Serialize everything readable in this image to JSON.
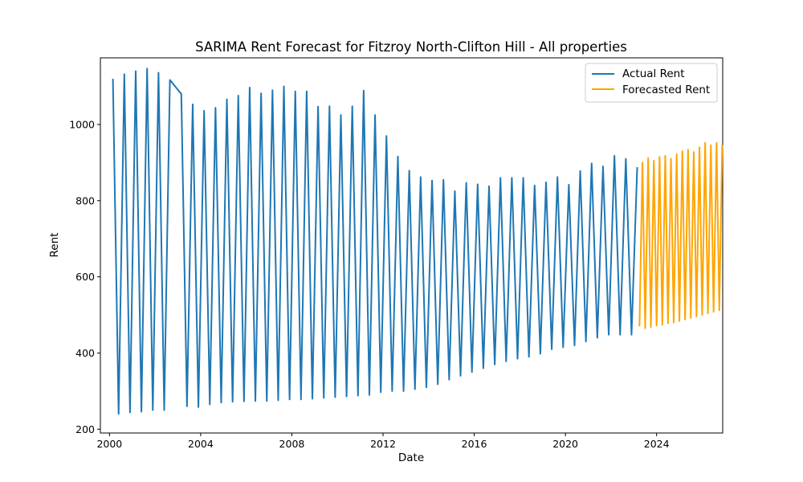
{
  "chart_data": {
    "type": "line",
    "title": "SARIMA Rent Forecast for Fitzroy North-Clifton Hill - All properties",
    "xlabel": "Date",
    "ylabel": "Rent",
    "xlim": [
      1999.6,
      2026.9
    ],
    "ylim": [
      190,
      1175
    ],
    "x_ticks": [
      2000,
      2004,
      2008,
      2012,
      2016,
      2020,
      2024
    ],
    "y_ticks": [
      200,
      400,
      600,
      800,
      1000
    ],
    "grid": false,
    "legend_position": "top-right",
    "series": [
      {
        "name": "Actual Rent",
        "color": "#1f77b4",
        "points": [
          [
            2000.15,
            1120
          ],
          [
            2000.4,
            240
          ],
          [
            2000.65,
            1132
          ],
          [
            2000.9,
            244
          ],
          [
            2001.15,
            1140
          ],
          [
            2001.4,
            246
          ],
          [
            2001.65,
            1147
          ],
          [
            2001.9,
            250
          ],
          [
            2002.15,
            1136
          ],
          [
            2002.4,
            250
          ],
          [
            2002.65,
            1117
          ],
          [
            2003.15,
            1080
          ],
          [
            2003.4,
            260
          ],
          [
            2003.65,
            1053
          ],
          [
            2003.9,
            258
          ],
          [
            2004.15,
            1036
          ],
          [
            2004.4,
            265
          ],
          [
            2004.65,
            1044
          ],
          [
            2004.9,
            270
          ],
          [
            2005.15,
            1066
          ],
          [
            2005.4,
            272
          ],
          [
            2005.65,
            1076
          ],
          [
            2005.9,
            273
          ],
          [
            2006.15,
            1097
          ],
          [
            2006.4,
            274
          ],
          [
            2006.65,
            1082
          ],
          [
            2006.9,
            274
          ],
          [
            2007.15,
            1090
          ],
          [
            2007.4,
            276
          ],
          [
            2007.65,
            1100
          ],
          [
            2007.9,
            278
          ],
          [
            2008.15,
            1087
          ],
          [
            2008.4,
            278
          ],
          [
            2008.65,
            1087
          ],
          [
            2008.9,
            280
          ],
          [
            2009.15,
            1047
          ],
          [
            2009.4,
            282
          ],
          [
            2009.65,
            1048
          ],
          [
            2009.9,
            284
          ],
          [
            2010.15,
            1025
          ],
          [
            2010.4,
            286
          ],
          [
            2010.65,
            1048
          ],
          [
            2010.9,
            288
          ],
          [
            2011.15,
            1089
          ],
          [
            2011.4,
            290
          ],
          [
            2011.65,
            1025
          ],
          [
            2011.9,
            297
          ],
          [
            2012.15,
            970
          ],
          [
            2012.4,
            300
          ],
          [
            2012.65,
            916
          ],
          [
            2012.9,
            300
          ],
          [
            2013.15,
            879
          ],
          [
            2013.4,
            305
          ],
          [
            2013.65,
            862
          ],
          [
            2013.9,
            310
          ],
          [
            2014.15,
            853
          ],
          [
            2014.4,
            318
          ],
          [
            2014.65,
            855
          ],
          [
            2014.9,
            330
          ],
          [
            2015.15,
            825
          ],
          [
            2015.4,
            340
          ],
          [
            2015.65,
            847
          ],
          [
            2015.9,
            350
          ],
          [
            2016.15,
            843
          ],
          [
            2016.4,
            360
          ],
          [
            2016.65,
            838
          ],
          [
            2016.9,
            370
          ],
          [
            2017.15,
            860
          ],
          [
            2017.4,
            378
          ],
          [
            2017.65,
            860
          ],
          [
            2017.9,
            385
          ],
          [
            2018.15,
            860
          ],
          [
            2018.4,
            390
          ],
          [
            2018.65,
            840
          ],
          [
            2018.9,
            398
          ],
          [
            2019.15,
            848
          ],
          [
            2019.4,
            410
          ],
          [
            2019.65,
            862
          ],
          [
            2019.9,
            415
          ],
          [
            2020.15,
            842
          ],
          [
            2020.4,
            420
          ],
          [
            2020.65,
            878
          ],
          [
            2020.9,
            430
          ],
          [
            2021.15,
            898
          ],
          [
            2021.4,
            440
          ],
          [
            2021.65,
            890
          ],
          [
            2021.9,
            448
          ],
          [
            2022.15,
            918
          ],
          [
            2022.4,
            448
          ],
          [
            2022.65,
            910
          ],
          [
            2022.9,
            448
          ],
          [
            2023.15,
            888
          ]
        ]
      },
      {
        "name": "Forecasted Rent",
        "color": "#ffa500",
        "points": [
          [
            2023.25,
            470
          ],
          [
            2023.38,
            900
          ],
          [
            2023.5,
            465
          ],
          [
            2023.63,
            912
          ],
          [
            2023.75,
            468
          ],
          [
            2023.88,
            905
          ],
          [
            2024.0,
            472
          ],
          [
            2024.13,
            915
          ],
          [
            2024.25,
            474
          ],
          [
            2024.38,
            918
          ],
          [
            2024.5,
            478
          ],
          [
            2024.63,
            910
          ],
          [
            2024.75,
            480
          ],
          [
            2024.88,
            922
          ],
          [
            2025.0,
            484
          ],
          [
            2025.13,
            930
          ],
          [
            2025.25,
            488
          ],
          [
            2025.38,
            934
          ],
          [
            2025.5,
            492
          ],
          [
            2025.63,
            928
          ],
          [
            2025.75,
            496
          ],
          [
            2025.88,
            940
          ],
          [
            2026.0,
            500
          ],
          [
            2026.13,
            952
          ],
          [
            2026.25,
            504
          ],
          [
            2026.38,
            946
          ],
          [
            2026.5,
            508
          ],
          [
            2026.63,
            952
          ],
          [
            2026.75,
            512
          ],
          [
            2026.88,
            946
          ]
        ]
      }
    ]
  }
}
